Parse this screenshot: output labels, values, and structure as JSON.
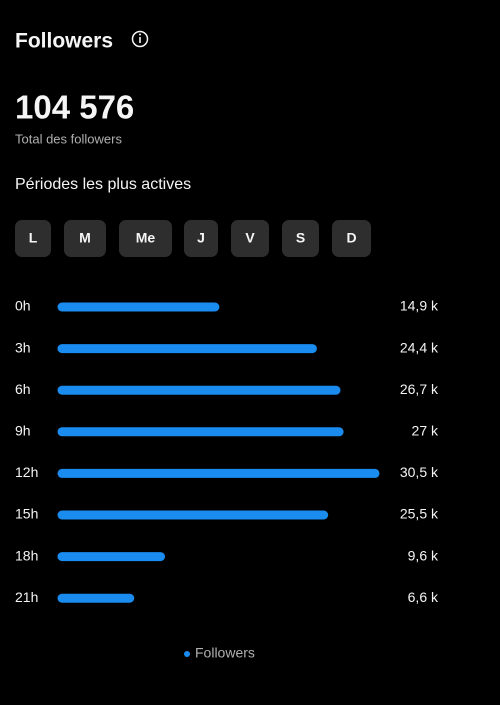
{
  "header": {
    "title": "Followers"
  },
  "total": {
    "value": "104 576",
    "label": "Total des followers"
  },
  "section_title": "Périodes les plus actives",
  "days": [
    "L",
    "M",
    "Me",
    "J",
    "V",
    "S",
    "D"
  ],
  "chart_data": {
    "type": "bar",
    "orientation": "horizontal",
    "categories": [
      "0h",
      "3h",
      "6h",
      "9h",
      "12h",
      "15h",
      "18h",
      "21h"
    ],
    "series": [
      {
        "name": "Followers",
        "color": "#1a8cf0",
        "values": [
          14.9,
          24.4,
          26.7,
          27,
          30.5,
          25.5,
          9.6,
          6.6
        ],
        "value_labels": [
          "14,9 k",
          "24,4 k",
          "26,7 k",
          "27 k",
          "30,5 k",
          "25,5 k",
          "9,6 k",
          "6,6 k"
        ]
      }
    ]
  }
}
